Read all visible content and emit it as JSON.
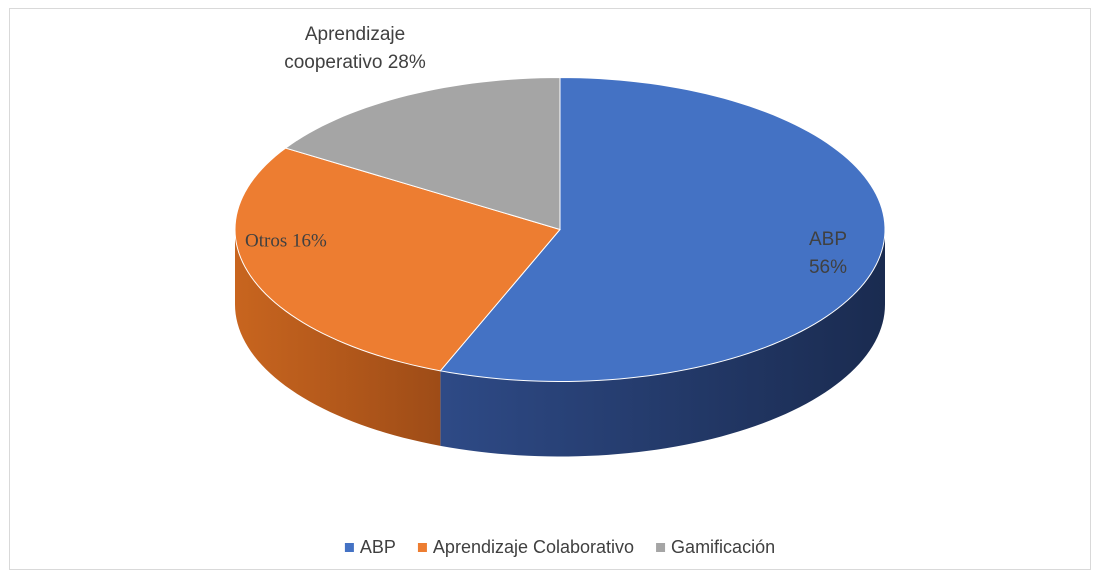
{
  "chart_data": {
    "type": "pie3d",
    "categories": [
      "ABP",
      "Aprendizaje Colaborativo",
      "Gamificación"
    ],
    "values": [
      56,
      28,
      16
    ],
    "colors": [
      "#4472c4",
      "#ed7d31",
      "#a5a5a5"
    ],
    "side_colors": [
      "#1f3563",
      "#b0561c",
      "#6e6e6e"
    ],
    "annotations": [
      [
        "ABP",
        "56%"
      ],
      [
        "Otros 16%"
      ],
      [
        "Aprendizaje",
        "cooperativo 28%"
      ]
    ],
    "legend": "bottom"
  }
}
